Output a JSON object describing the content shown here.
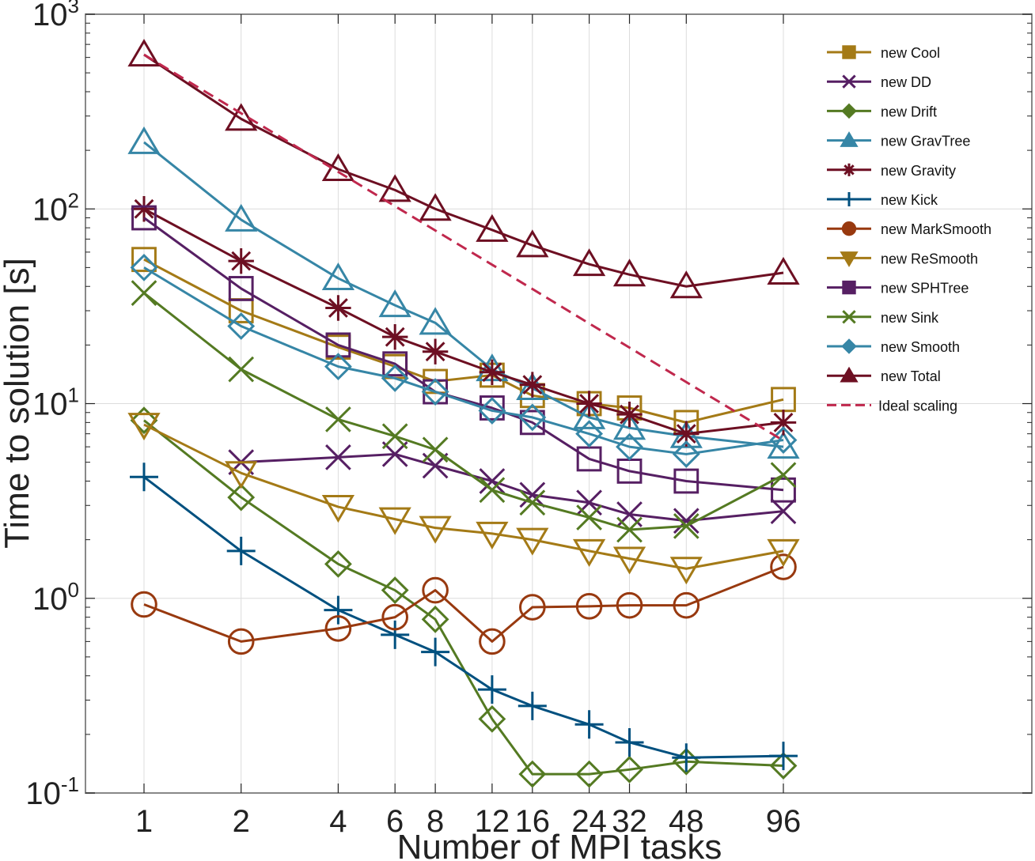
{
  "chart_data": {
    "type": "line",
    "title": "",
    "xlabel": "Number of MPI tasks",
    "ylabel": "Time to solution [s]",
    "xscale": "log",
    "yscale": "log",
    "ylim": [
      0.1,
      1000
    ],
    "grid": true,
    "legend_position": "top-right",
    "x": [
      1,
      2,
      4,
      6,
      8,
      12,
      16,
      24,
      32,
      48,
      96
    ],
    "x_tick_labels": [
      "1",
      "2",
      "4",
      "6",
      "8",
      "12",
      "16",
      "24",
      "32",
      "48",
      "96"
    ],
    "y_ticks": [
      {
        "value": 0.1,
        "base": "10",
        "exp": "-1"
      },
      {
        "value": 1,
        "base": "10",
        "exp": "0"
      },
      {
        "value": 10,
        "base": "10",
        "exp": "1"
      },
      {
        "value": 100,
        "base": "10",
        "exp": "2"
      },
      {
        "value": 1000,
        "base": "10",
        "exp": "3"
      }
    ],
    "series": [
      {
        "name": "new Cool",
        "color": "#a47a16",
        "marker": "square",
        "values": [
          55,
          30,
          19.5,
          15.5,
          13,
          14,
          11,
          10,
          9.5,
          8,
          10.5
        ]
      },
      {
        "name": "new DD",
        "color": "#561f63",
        "marker": "x",
        "values": [
          null,
          5,
          5.3,
          5.5,
          4.8,
          4,
          3.4,
          3.1,
          2.7,
          2.5,
          2.8
        ]
      },
      {
        "name": "new Drift",
        "color": "#547a22",
        "marker": "diamond",
        "values": [
          8.2,
          3.3,
          1.5,
          1.1,
          0.78,
          0.24,
          0.125,
          0.125,
          0.132,
          0.145,
          0.138
        ]
      },
      {
        "name": "new GravTree",
        "color": "#3686a6",
        "marker": "triangle-up",
        "values": [
          220,
          88,
          44,
          32,
          26,
          15,
          12,
          8.5,
          7.5,
          6.8,
          6
        ]
      },
      {
        "name": "new Gravity",
        "color": "#6d0f22",
        "marker": "asterisk",
        "values": [
          100,
          54,
          31,
          22,
          18.5,
          14.5,
          12.5,
          10,
          8.8,
          7,
          8
        ]
      },
      {
        "name": "new Kick",
        "color": "#00507f",
        "marker": "plus",
        "values": [
          4.2,
          1.75,
          0.87,
          0.65,
          0.53,
          0.34,
          0.28,
          0.225,
          0.182,
          0.152,
          0.155
        ]
      },
      {
        "name": "new MarkSmooth",
        "color": "#98390f",
        "marker": "circle",
        "values": [
          0.93,
          0.6,
          0.7,
          0.8,
          1.1,
          0.6,
          0.9,
          0.91,
          0.92,
          0.92,
          1.45
        ]
      },
      {
        "name": "new ReSmooth",
        "color": "#a47a16",
        "marker": "triangle-down",
        "values": [
          7.8,
          4.4,
          2.95,
          2.55,
          2.3,
          2.15,
          2,
          1.75,
          1.6,
          1.42,
          1.75
        ]
      },
      {
        "name": "new SPHTree",
        "color": "#561f63",
        "marker": "square",
        "values": [
          90,
          39,
          20,
          16,
          11.5,
          9.5,
          8,
          5.2,
          4.5,
          4,
          3.6
        ]
      },
      {
        "name": "new Sink",
        "color": "#547a22",
        "marker": "x",
        "values": [
          37,
          15,
          8.3,
          6.8,
          5.8,
          3.6,
          3.1,
          2.6,
          2.25,
          2.35,
          4.3
        ]
      },
      {
        "name": "new Smooth",
        "color": "#3686a6",
        "marker": "diamond",
        "values": [
          50,
          25,
          15.5,
          13.5,
          11.5,
          9.2,
          8.5,
          7,
          6,
          5.5,
          6.5
        ]
      },
      {
        "name": "new Total",
        "color": "#6d0f22",
        "marker": "triangle-up",
        "values": [
          620,
          290,
          160,
          125,
          100,
          78,
          65,
          52,
          46,
          40,
          47
        ]
      },
      {
        "name": "Ideal scaling",
        "color": "#c0284d",
        "marker": "none",
        "dashed": true,
        "values": [
          620,
          310,
          155,
          103.3,
          77.5,
          51.7,
          38.8,
          25.8,
          19.4,
          12.9,
          6.46
        ]
      }
    ]
  }
}
